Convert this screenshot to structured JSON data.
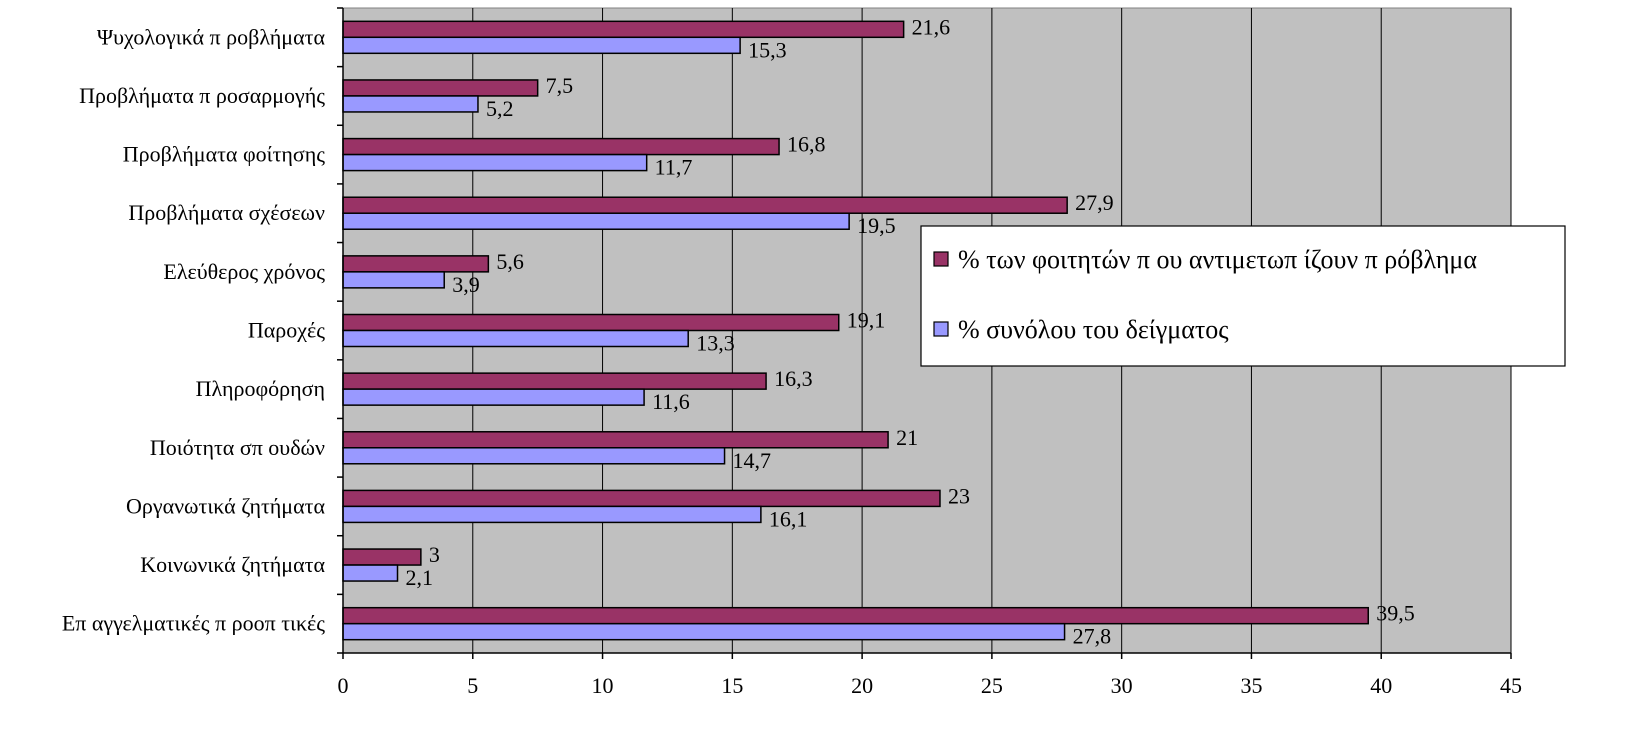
{
  "chart_data": {
    "type": "bar",
    "orientation": "horizontal",
    "categories": [
      "Ψυχολογικά π ροβλήματα",
      "Προβλήματα π ροσαρμογής",
      "Προβλήματα φοίτησης",
      "Προβλήματα σχέσεων",
      "Ελεύθερος χρόνος",
      "Παροχές",
      "Πληροφόρηση",
      "Ποιότητα σπ ουδών",
      "Οργανωτικά ζητήματα",
      "Κοινωνικά ζητήματα",
      "Επ αγγελματικές π ροοπ τικές"
    ],
    "series": [
      {
        "name": "% των φοιτητών π ου αντιμετωπ ίζουν π ρόβλημα",
        "color": "#993366",
        "values": [
          21.6,
          7.5,
          16.8,
          27.9,
          5.6,
          19.1,
          16.3,
          21,
          23,
          3,
          39.5
        ],
        "labels": [
          "21,6",
          "7,5",
          "16,8",
          "27,9",
          "5,6",
          "19,1",
          "16,3",
          "21",
          "23",
          "3",
          "39,5"
        ]
      },
      {
        "name": "% συνόλου του δείγματος",
        "color": "#9999FF",
        "values": [
          15.3,
          5.2,
          11.7,
          19.5,
          3.9,
          13.3,
          11.6,
          14.7,
          16.1,
          2.1,
          27.8
        ],
        "labels": [
          "15,3",
          "5,2",
          "11,7",
          "19,5",
          "3,9",
          "13,3",
          "11,6",
          "14,7",
          "16,1",
          "2,1",
          "27,8"
        ]
      }
    ],
    "xticks": [
      "0",
      "5",
      "10",
      "15",
      "20",
      "25",
      "30",
      "35",
      "40",
      "45"
    ],
    "xlim": [
      0,
      45
    ],
    "grid": "vertical",
    "plot_background": "#C0C0C0",
    "legend_position": "right"
  }
}
